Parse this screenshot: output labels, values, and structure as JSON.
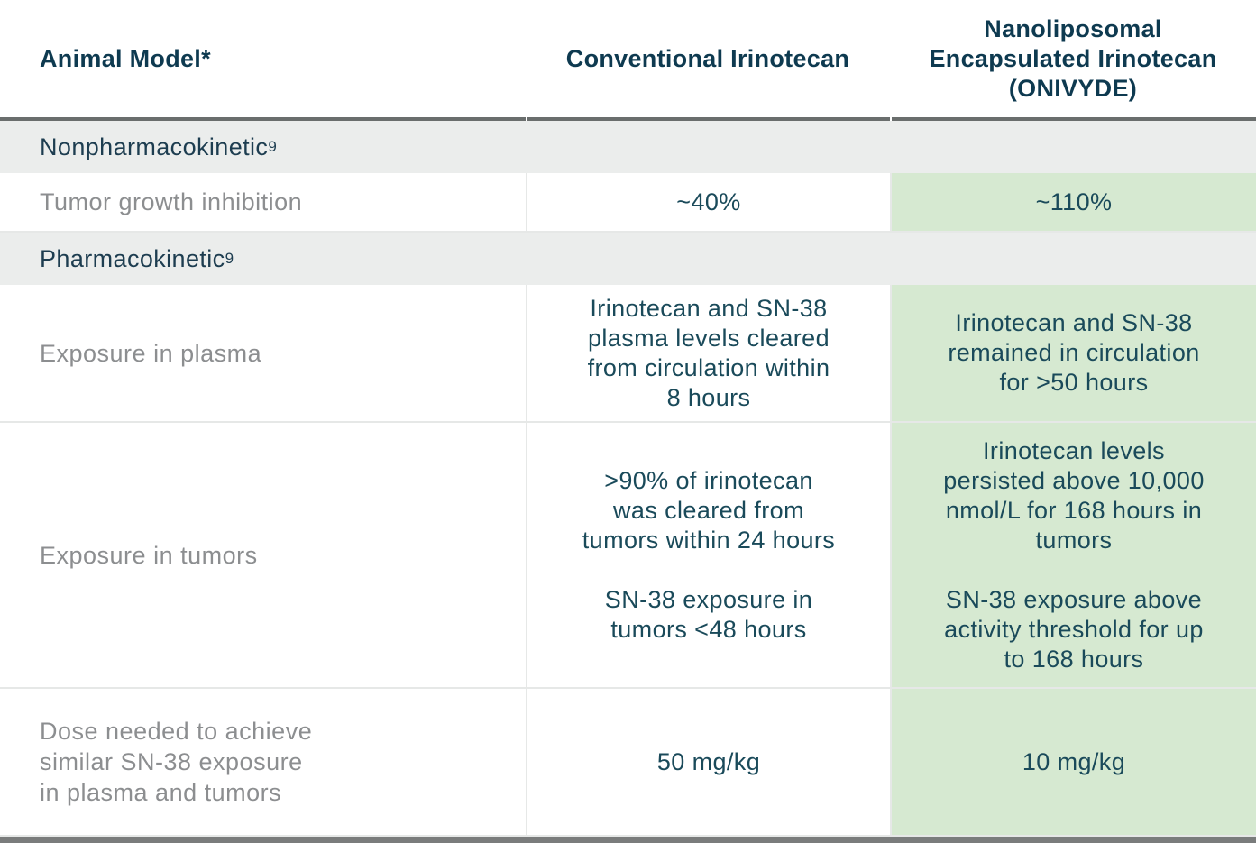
{
  "colors": {
    "header_text": "#0e3a50",
    "section_text": "#1d3d50",
    "section_bg": "#ebedec",
    "label_text": "#8c8e90",
    "value_text": "#1a4a5a",
    "highlight_bg": "#d6e9d1",
    "cell_border": "#e6e8e7",
    "top_bar": "#6a6e6d",
    "bottom_bar": "#7a7c7c"
  },
  "table": {
    "header": {
      "animal_model": "Animal Model*",
      "conventional": "Conventional Irinotecan",
      "onivyde": "Nanoliposomal\nEncapsulated Irinotecan\n(ONIVYDE)"
    },
    "sections": [
      {
        "label": "Nonpharmacokinetic",
        "ref": "9"
      },
      {
        "label": "Pharmacokinetic",
        "ref": "9"
      }
    ],
    "rows": {
      "tumor_growth": {
        "label": "Tumor growth inhibition",
        "conventional": "~40%",
        "onivyde": "~110%"
      },
      "plasma": {
        "label": "Exposure in plasma",
        "conventional": "Irinotecan and SN-38\nplasma levels cleared\nfrom circulation within\n8 hours",
        "onivyde": "Irinotecan and SN-38\nremained in circulation\nfor >50 hours"
      },
      "tumors": {
        "label": "Exposure in tumors",
        "conventional_p1": ">90% of irinotecan\nwas cleared from\ntumors within 24 hours",
        "conventional_p2": "SN-38 exposure in\ntumors <48 hours",
        "onivyde_p1": "Irinotecan levels\npersisted above 10,000\nnmol/L for 168 hours in\ntumors",
        "onivyde_p2": "SN-38 exposure above\nactivity threshold for up\nto 168 hours"
      },
      "dose": {
        "label": "Dose needed to achieve\nsimilar SN-38 exposure\nin plasma and tumors",
        "conventional": "50 mg/kg",
        "onivyde": "10 mg/kg"
      }
    }
  }
}
